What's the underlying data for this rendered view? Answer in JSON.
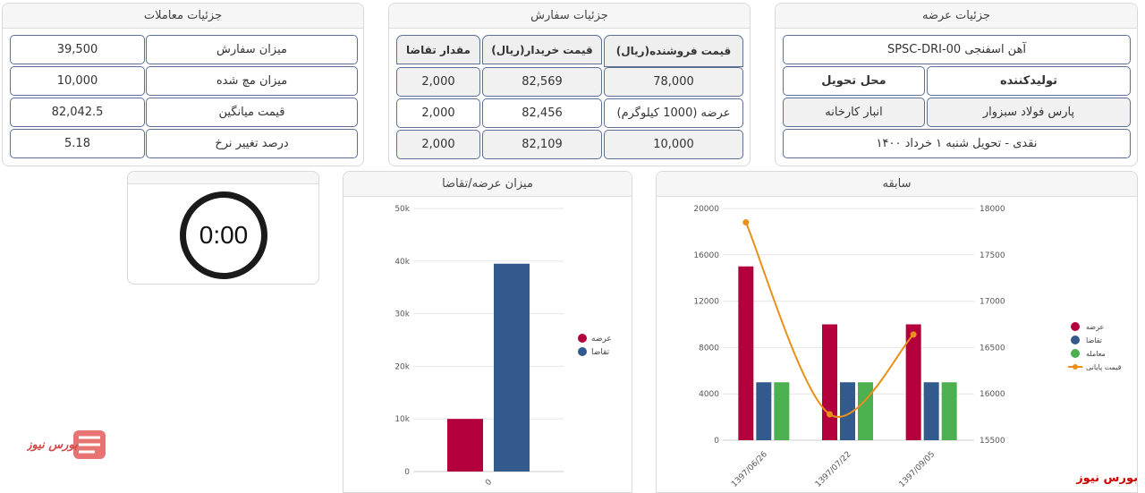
{
  "panels": {
    "trades_title": "جزئیات معاملات",
    "order_title": "جزئیات سفارش",
    "offer_title": "جزئیات عرضه",
    "supply_chart_title": "میزان عرضه/تقاضا",
    "history_title": "سابقه"
  },
  "trades": {
    "rows": [
      {
        "label": "میزان سفارش",
        "value": "39,500"
      },
      {
        "label": "میزان مچ شده",
        "value": "10,000"
      },
      {
        "label": "قیمت میانگین",
        "value": "82,042.5"
      },
      {
        "label": "درصد تغییر نرخ",
        "value": "5.18"
      }
    ]
  },
  "order": {
    "headers": {
      "seller_price": "قیمت فروشنده(ریال)",
      "buyer_price": "قیمت خریدار(ریال)",
      "demand": "مقدار تقاضا"
    },
    "rows": [
      {
        "seller": "78,000",
        "buyer": "82,569",
        "demand": "2,000"
      },
      {
        "seller": "عرضه (1000 کیلوگرم)",
        "buyer": "82,456",
        "demand": "2,000"
      },
      {
        "seller": "10,000",
        "buyer": "82,109",
        "demand": "2,000"
      }
    ]
  },
  "offer": {
    "product": "آهن اسفنجی SPSC-DRI-00",
    "producer_label": "تولیدکننده",
    "delivery_label": "محل تحویل",
    "producer": "پارس فولاد سبزوار",
    "delivery": "انبار کارخانه",
    "terms": "نقدی - تحویل شنبه ۱ خرداد ۱۴۰۰"
  },
  "timer": {
    "value": "0:00"
  },
  "watermark": {
    "text": "بورس نیوز"
  },
  "colors": {
    "supply": "#b3003c",
    "demand": "#325a8c",
    "trade": "#4caf50",
    "price": "#e8901a"
  },
  "chart_data": [
    {
      "type": "bar",
      "categories": [
        "0"
      ],
      "series": [
        {
          "name": "عرضه",
          "values": [
            10000
          ]
        },
        {
          "name": "تقاضا",
          "values": [
            39500
          ]
        }
      ],
      "yticks": [
        "0",
        "10k",
        "20k",
        "30k",
        "40k",
        "50k"
      ],
      "ylim": [
        0,
        50000
      ],
      "legend": "right"
    },
    {
      "type": "bar",
      "categories": [
        "1397/06/26",
        "1397/07/22",
        "1397/09/05"
      ],
      "series": [
        {
          "name": "عرضه",
          "values": [
            15000,
            10000,
            10000
          ]
        },
        {
          "name": "تقاضا",
          "values": [
            5000,
            5000,
            5000
          ]
        },
        {
          "name": "معامله",
          "values": [
            5000,
            5000,
            5000
          ]
        },
        {
          "name": "قیمت پایانی",
          "type": "line",
          "axis": "right",
          "values": [
            17850,
            15780,
            16640
          ]
        }
      ],
      "ylim": [
        0,
        20000
      ],
      "yticks": [
        "0",
        "4000",
        "8000",
        "12000",
        "16000",
        "20000"
      ],
      "y2lim": [
        15500,
        18000
      ],
      "y2ticks": [
        "15500",
        "16000",
        "16500",
        "17000",
        "17500",
        "18000"
      ],
      "legend": "right"
    }
  ]
}
